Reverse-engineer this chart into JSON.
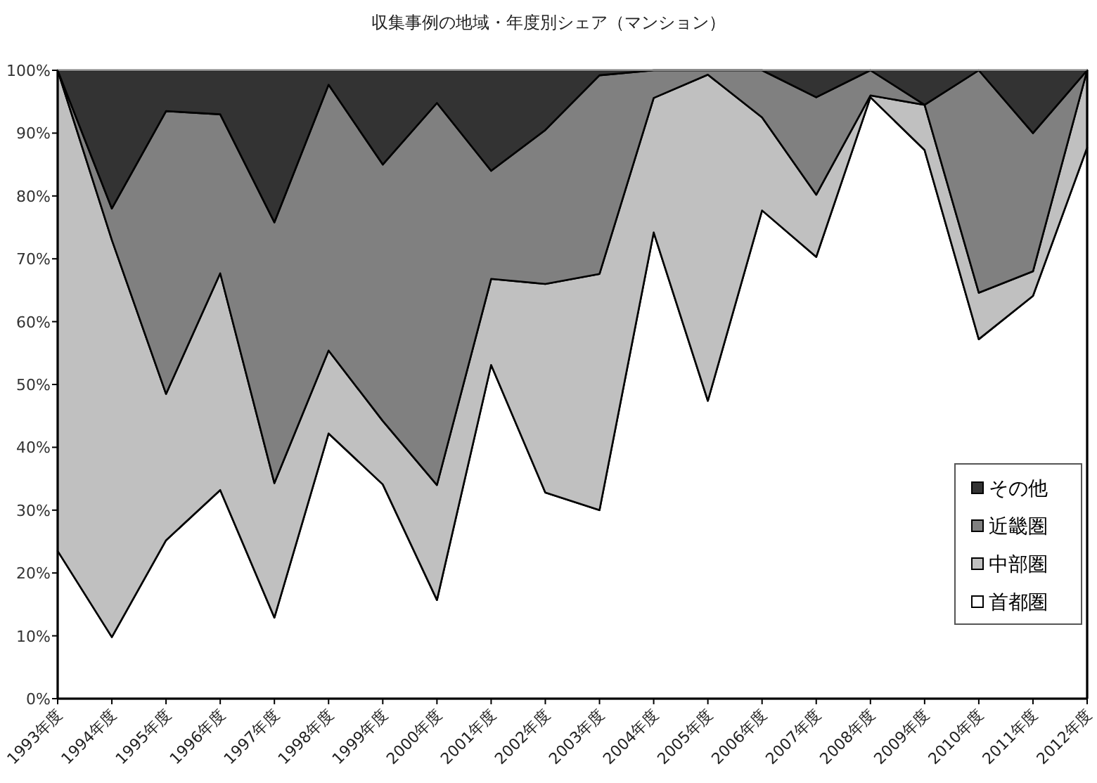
{
  "chart_data": {
    "type": "area",
    "stacked": true,
    "title": "収集事例の地域・年度別シェア（マンション）",
    "categories": [
      "1993年度",
      "1994年度",
      "1995年度",
      "1996年度",
      "1997年度",
      "1998年度",
      "1999年度",
      "2000年度",
      "2001年度",
      "2002年度",
      "2003年度",
      "2004年度",
      "2005年度",
      "2006年度",
      "2007年度",
      "2008年度",
      "2009年度",
      "2010年度",
      "2011年度",
      "2012年度"
    ],
    "series": [
      {
        "name": "首都圏",
        "color": "#ffffff",
        "values": [
          23.5,
          9.8,
          25.2,
          33.2,
          12.9,
          42.2,
          34.1,
          15.7,
          53.1,
          32.8,
          30,
          74.2,
          47.4,
          77.7,
          70.3,
          95.7,
          87.3,
          57.2,
          64.1,
          87.7
        ]
      },
      {
        "name": "中部圏",
        "color": "#c0c0c0",
        "values": [
          76.5,
          63.2,
          23.3,
          34.5,
          21.4,
          13.2,
          10.1,
          18.3,
          13.7,
          33.2,
          37.6,
          21.4,
          51.9,
          14.8,
          9.9,
          0.3,
          7.2,
          7.4,
          3.9,
          12.3
        ]
      },
      {
        "name": "近畿圏",
        "color": "#808080",
        "values": [
          0,
          5,
          45,
          25.3,
          41.5,
          42.3,
          40.8,
          60.8,
          17.2,
          24.5,
          31.6,
          4.4,
          0.7,
          7.5,
          15.5,
          4,
          0,
          35.4,
          22,
          0
        ]
      },
      {
        "name": "その他",
        "color": "#333333",
        "values": [
          0,
          22,
          6.5,
          7,
          24.2,
          2.3,
          15,
          5.2,
          16,
          9.5,
          0.8,
          0,
          0,
          0,
          4.3,
          0,
          5.5,
          0,
          10,
          0
        ]
      }
    ],
    "ylim": [
      0,
      100
    ],
    "yticks": [
      {
        "value": 0,
        "label": "0%"
      },
      {
        "value": 10,
        "label": "10%"
      },
      {
        "value": 20,
        "label": "20%"
      },
      {
        "value": 30,
        "label": "30%"
      },
      {
        "value": 40,
        "label": "40%"
      },
      {
        "value": 50,
        "label": "50%"
      },
      {
        "value": 60,
        "label": "60%"
      },
      {
        "value": 70,
        "label": "70%"
      },
      {
        "value": 80,
        "label": "80%"
      },
      {
        "value": 90,
        "label": "90%"
      },
      {
        "value": 100,
        "label": "100%"
      }
    ],
    "legend": "right"
  }
}
